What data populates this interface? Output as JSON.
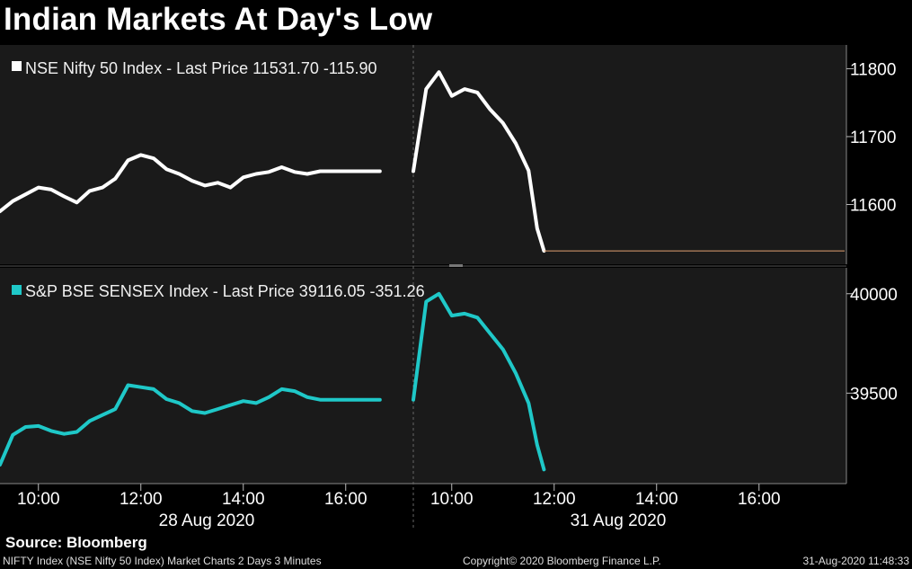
{
  "title": "Indian Markets At Day's Low",
  "source": "Source: Bloomberg",
  "footer": {
    "left": "NIFTY Index (NSE Nifty 50 Index) Market Charts 2 Days 3 Minutes",
    "center": "Copyright© 2020 Bloomberg Finance L.P.",
    "right": "31-Aug-2020 11:48:33"
  },
  "colors": {
    "nifty": "#ffffff",
    "sensex": "#1fc8c8",
    "last_price_line": "#e0a070",
    "panel_bg": "#1a1a1a"
  },
  "chart_data": [
    {
      "type": "line",
      "series": [
        {
          "name": "NSE Nifty 50 Index - Last Price 11531.70  -115.90",
          "color": "#ffffff",
          "segments": [
            [
              [
                "28 Aug 09:15",
                11590
              ],
              [
                "28 Aug 09:30",
                11605
              ],
              [
                "28 Aug 09:45",
                11615
              ],
              [
                "28 Aug 10:00",
                11625
              ],
              [
                "28 Aug 10:15",
                11622
              ],
              [
                "28 Aug 10:30",
                11612
              ],
              [
                "28 Aug 10:45",
                11603
              ],
              [
                "28 Aug 11:00",
                11620
              ],
              [
                "28 Aug 11:15",
                11625
              ],
              [
                "28 Aug 11:30",
                11638
              ],
              [
                "28 Aug 11:45",
                11665
              ],
              [
                "28 Aug 12:00",
                11673
              ],
              [
                "28 Aug 12:15",
                11668
              ],
              [
                "28 Aug 12:30",
                11652
              ],
              [
                "28 Aug 12:45",
                11645
              ],
              [
                "28 Aug 13:00",
                11635
              ],
              [
                "28 Aug 13:15",
                11628
              ],
              [
                "28 Aug 13:30",
                11632
              ],
              [
                "28 Aug 13:45",
                11625
              ],
              [
                "28 Aug 14:00",
                11640
              ],
              [
                "28 Aug 14:15",
                11645
              ],
              [
                "28 Aug 14:30",
                11648
              ],
              [
                "28 Aug 14:45",
                11655
              ],
              [
                "28 Aug 15:00",
                11648
              ],
              [
                "28 Aug 15:15",
                11645
              ],
              [
                "28 Aug 15:30",
                11649
              ],
              [
                "28 Aug 16:40",
                11649
              ]
            ],
            [
              [
                "31 Aug 09:15",
                11649
              ],
              [
                "31 Aug 09:30",
                11770
              ],
              [
                "31 Aug 09:45",
                11795
              ],
              [
                "31 Aug 10:00",
                11760
              ],
              [
                "31 Aug 10:15",
                11770
              ],
              [
                "31 Aug 10:30",
                11765
              ],
              [
                "31 Aug 10:45",
                11740
              ],
              [
                "31 Aug 11:00",
                11720
              ],
              [
                "31 Aug 11:15",
                11690
              ],
              [
                "31 Aug 11:30",
                11650
              ],
              [
                "31 Aug 11:40",
                11565
              ],
              [
                "31 Aug 11:48",
                11531.7
              ]
            ]
          ]
        }
      ],
      "last_price": 11531.7,
      "yticks": [
        11600,
        11700,
        11800
      ],
      "ylim": [
        11512,
        11835
      ]
    },
    {
      "type": "line",
      "series": [
        {
          "name": "S&P BSE SENSEX Index - Last Price 39116.05  -351.26",
          "color": "#1fc8c8",
          "segments": [
            [
              [
                "28 Aug 09:15",
                39140
              ],
              [
                "28 Aug 09:30",
                39290
              ],
              [
                "28 Aug 09:45",
                39330
              ],
              [
                "28 Aug 10:00",
                39335
              ],
              [
                "28 Aug 10:15",
                39310
              ],
              [
                "28 Aug 10:30",
                39295
              ],
              [
                "28 Aug 10:45",
                39305
              ],
              [
                "28 Aug 11:00",
                39360
              ],
              [
                "28 Aug 11:15",
                39390
              ],
              [
                "28 Aug 11:30",
                39420
              ],
              [
                "28 Aug 11:45",
                39540
              ],
              [
                "28 Aug 12:00",
                39530
              ],
              [
                "28 Aug 12:15",
                39520
              ],
              [
                "28 Aug 12:30",
                39470
              ],
              [
                "28 Aug 12:45",
                39450
              ],
              [
                "28 Aug 13:00",
                39410
              ],
              [
                "28 Aug 13:15",
                39400
              ],
              [
                "28 Aug 13:30",
                39420
              ],
              [
                "28 Aug 13:45",
                39440
              ],
              [
                "28 Aug 14:00",
                39460
              ],
              [
                "28 Aug 14:15",
                39450
              ],
              [
                "28 Aug 14:30",
                39480
              ],
              [
                "28 Aug 14:45",
                39520
              ],
              [
                "28 Aug 15:00",
                39510
              ],
              [
                "28 Aug 15:15",
                39480
              ],
              [
                "28 Aug 15:30",
                39467
              ],
              [
                "28 Aug 16:40",
                39467
              ]
            ],
            [
              [
                "31 Aug 09:15",
                39467
              ],
              [
                "31 Aug 09:30",
                39960
              ],
              [
                "31 Aug 09:45",
                40000
              ],
              [
                "31 Aug 10:00",
                39890
              ],
              [
                "31 Aug 10:15",
                39900
              ],
              [
                "31 Aug 10:30",
                39880
              ],
              [
                "31 Aug 10:45",
                39800
              ],
              [
                "31 Aug 11:00",
                39720
              ],
              [
                "31 Aug 11:15",
                39600
              ],
              [
                "31 Aug 11:30",
                39450
              ],
              [
                "31 Aug 11:40",
                39240
              ],
              [
                "31 Aug 11:48",
                39116.05
              ]
            ]
          ]
        }
      ],
      "yticks": [
        39500,
        40000
      ],
      "ylim": [
        39045,
        40130
      ]
    }
  ],
  "xaxis": {
    "day1": {
      "label": "28 Aug 2020",
      "times": [
        "10:00",
        "12:00",
        "14:00",
        "16:00"
      ]
    },
    "day2": {
      "label": "31 Aug 2020",
      "times": [
        "10:00",
        "12:00",
        "14:00",
        "16:00"
      ]
    }
  }
}
